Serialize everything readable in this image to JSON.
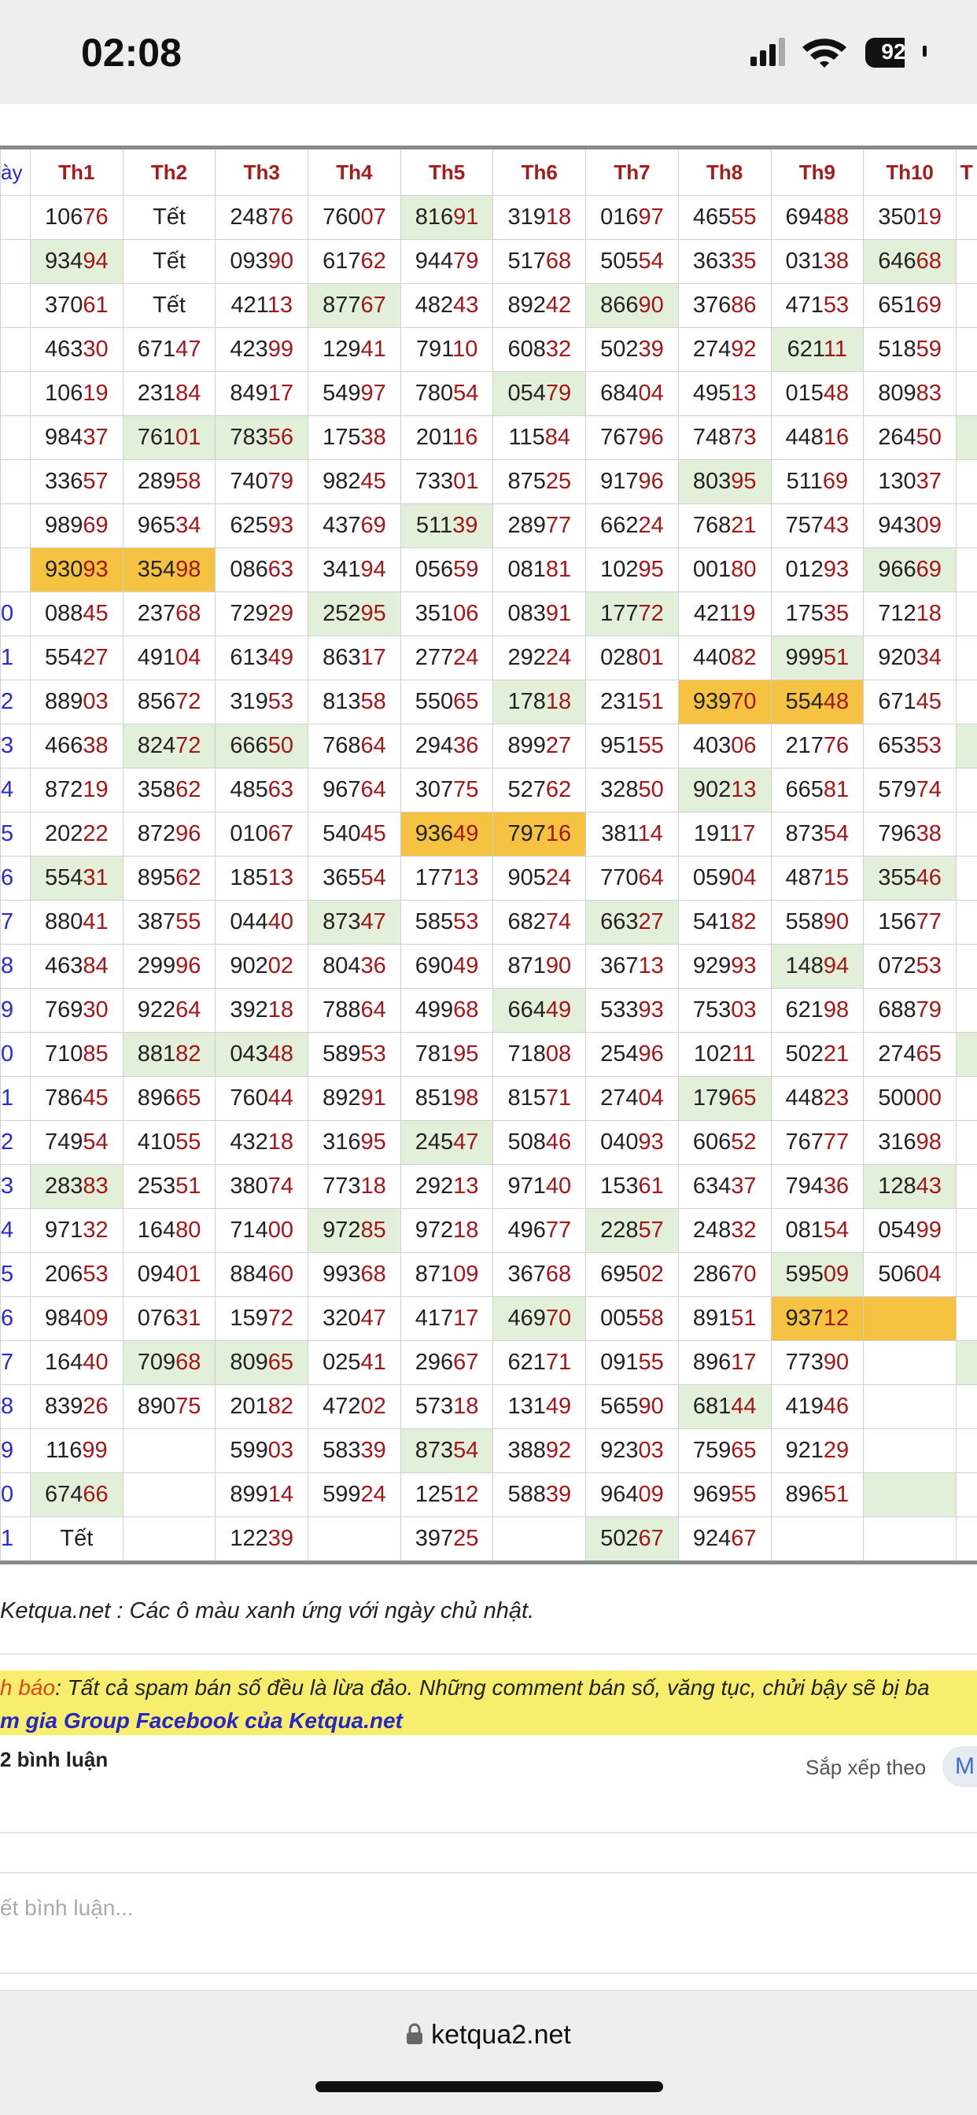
{
  "status_bar": {
    "time": "02:08",
    "battery": "92"
  },
  "table": {
    "header": [
      "ày",
      "Th1",
      "Th2",
      "Th3",
      "Th4",
      "Th5",
      "Th6",
      "Th7",
      "Th8",
      "Th9",
      "Th10",
      "T"
    ],
    "shade_colors": {
      "g": "#e3f0d9",
      "o": "#f5c242"
    },
    "rows": [
      {
        "label": null,
        "cells": [
          "10676",
          "Tết",
          "24876",
          "76007",
          "81691",
          "31918",
          "01697",
          "46555",
          "69488",
          "35019",
          null
        ],
        "shade": [
          null,
          null,
          null,
          null,
          "g",
          null,
          null,
          null,
          null,
          null,
          null
        ]
      },
      {
        "label": null,
        "cells": [
          "93494",
          "Tết",
          "09390",
          "61762",
          "94479",
          "51768",
          "50554",
          "36335",
          "03138",
          "64668",
          null
        ],
        "shade": [
          "g",
          null,
          null,
          null,
          null,
          null,
          null,
          null,
          null,
          "g",
          null
        ]
      },
      {
        "label": null,
        "cells": [
          "37061",
          "Tết",
          "42113",
          "87767",
          "48243",
          "89242",
          "86690",
          "37686",
          "47153",
          "65169",
          null
        ],
        "shade": [
          null,
          null,
          null,
          "g",
          null,
          null,
          "g",
          null,
          null,
          null,
          null
        ]
      },
      {
        "label": null,
        "cells": [
          "46330",
          "67147",
          "42399",
          "12941",
          "79110",
          "60832",
          "50239",
          "27492",
          "62111",
          "51859",
          null
        ],
        "shade": [
          null,
          null,
          null,
          null,
          null,
          null,
          null,
          null,
          "g",
          null,
          null
        ]
      },
      {
        "label": null,
        "cells": [
          "10619",
          "23184",
          "84917",
          "54997",
          "78054",
          "05479",
          "68404",
          "49513",
          "01548",
          "80983",
          null
        ],
        "shade": [
          null,
          null,
          null,
          null,
          null,
          "g",
          null,
          null,
          null,
          null,
          null
        ]
      },
      {
        "label": null,
        "cells": [
          "98437",
          "76101",
          "78356",
          "17538",
          "20116",
          "11584",
          "76796",
          "74873",
          "44816",
          "26450",
          null
        ],
        "shade": [
          null,
          "g",
          "g",
          null,
          null,
          null,
          null,
          null,
          null,
          null,
          "g"
        ]
      },
      {
        "label": null,
        "cells": [
          "33657",
          "28958",
          "74079",
          "98245",
          "73301",
          "87525",
          "91796",
          "80395",
          "51169",
          "13037",
          null
        ],
        "shade": [
          null,
          null,
          null,
          null,
          null,
          null,
          null,
          "g",
          null,
          null,
          null
        ]
      },
      {
        "label": null,
        "cells": [
          "98969",
          "96534",
          "62593",
          "43769",
          "51139",
          "28977",
          "66224",
          "76821",
          "75743",
          "94309",
          null
        ],
        "shade": [
          null,
          null,
          null,
          null,
          "g",
          null,
          null,
          null,
          null,
          null,
          null
        ]
      },
      {
        "label": null,
        "cells": [
          "93093",
          "35498",
          "08663",
          "34194",
          "05659",
          "08181",
          "10295",
          "00180",
          "01293",
          "96669",
          null
        ],
        "shade": [
          "o",
          "o",
          null,
          null,
          null,
          null,
          null,
          null,
          null,
          "g",
          null
        ]
      },
      {
        "label": "0",
        "cells": [
          "08845",
          "23768",
          "72929",
          "25295",
          "35106",
          "08391",
          "17772",
          "42119",
          "17535",
          "71218",
          null
        ],
        "shade": [
          null,
          null,
          null,
          "g",
          null,
          null,
          "g",
          null,
          null,
          null,
          null
        ]
      },
      {
        "label": "1",
        "cells": [
          "55427",
          "49104",
          "61349",
          "86317",
          "27724",
          "29224",
          "02801",
          "44082",
          "99951",
          "92034",
          null
        ],
        "shade": [
          null,
          null,
          null,
          null,
          null,
          null,
          null,
          null,
          "g",
          null,
          null
        ]
      },
      {
        "label": "2",
        "cells": [
          "88903",
          "85672",
          "31953",
          "81358",
          "55065",
          "17818",
          "23151",
          "93970",
          "55448",
          "67145",
          null
        ],
        "shade": [
          null,
          null,
          null,
          null,
          null,
          "g",
          null,
          "o",
          "o",
          null,
          null
        ]
      },
      {
        "label": "3",
        "cells": [
          "46638",
          "82472",
          "66650",
          "76864",
          "29436",
          "89927",
          "95155",
          "40306",
          "21776",
          "65353",
          null
        ],
        "shade": [
          null,
          "g",
          "g",
          null,
          null,
          null,
          null,
          null,
          null,
          null,
          "g"
        ]
      },
      {
        "label": "4",
        "cells": [
          "87219",
          "35862",
          "48563",
          "96764",
          "30775",
          "52762",
          "32850",
          "90213",
          "66581",
          "57974",
          null
        ],
        "shade": [
          null,
          null,
          null,
          null,
          null,
          null,
          null,
          "g",
          null,
          null,
          null
        ]
      },
      {
        "label": "5",
        "cells": [
          "20222",
          "87296",
          "01067",
          "54045",
          "93649",
          "79716",
          "38114",
          "19117",
          "87354",
          "79638",
          null
        ],
        "shade": [
          null,
          null,
          null,
          null,
          "o",
          "o",
          null,
          null,
          null,
          null,
          null
        ]
      },
      {
        "label": "6",
        "cells": [
          "55431",
          "89562",
          "18513",
          "36554",
          "17713",
          "90524",
          "77064",
          "05904",
          "48715",
          "35546",
          null
        ],
        "shade": [
          "g",
          null,
          null,
          null,
          null,
          null,
          null,
          null,
          null,
          "g",
          null
        ]
      },
      {
        "label": "7",
        "cells": [
          "88041",
          "38755",
          "04440",
          "87347",
          "58553",
          "68274",
          "66327",
          "54182",
          "55890",
          "15677",
          null
        ],
        "shade": [
          null,
          null,
          null,
          "g",
          null,
          null,
          "g",
          null,
          null,
          null,
          null
        ]
      },
      {
        "label": "8",
        "cells": [
          "46384",
          "29996",
          "90202",
          "80436",
          "69049",
          "87190",
          "36713",
          "92993",
          "14894",
          "07253",
          null
        ],
        "shade": [
          null,
          null,
          null,
          null,
          null,
          null,
          null,
          null,
          "g",
          null,
          null
        ]
      },
      {
        "label": "9",
        "cells": [
          "76930",
          "92264",
          "39218",
          "78864",
          "49968",
          "66449",
          "53393",
          "75303",
          "62198",
          "68879",
          null
        ],
        "shade": [
          null,
          null,
          null,
          null,
          null,
          "g",
          null,
          null,
          null,
          null,
          null
        ]
      },
      {
        "label": "0",
        "cells": [
          "71085",
          "88182",
          "04348",
          "58953",
          "78195",
          "71808",
          "25496",
          "10211",
          "50221",
          "27465",
          null
        ],
        "shade": [
          null,
          "g",
          "g",
          null,
          null,
          null,
          null,
          null,
          null,
          null,
          "g"
        ]
      },
      {
        "label": "1",
        "cells": [
          "78645",
          "89665",
          "76044",
          "89291",
          "85198",
          "81571",
          "27404",
          "17965",
          "44823",
          "50000",
          null
        ],
        "shade": [
          null,
          null,
          null,
          null,
          null,
          null,
          null,
          "g",
          null,
          null,
          null
        ]
      },
      {
        "label": "2",
        "cells": [
          "74954",
          "41055",
          "43218",
          "31695",
          "24547",
          "50846",
          "04093",
          "60652",
          "76777",
          "31698",
          null
        ],
        "shade": [
          null,
          null,
          null,
          null,
          "g",
          null,
          null,
          null,
          null,
          null,
          null
        ]
      },
      {
        "label": "3",
        "cells": [
          "28383",
          "25351",
          "38074",
          "77318",
          "29213",
          "97140",
          "15361",
          "63437",
          "79436",
          "12843",
          null
        ],
        "shade": [
          "g",
          null,
          null,
          null,
          null,
          null,
          null,
          null,
          null,
          "g",
          null
        ]
      },
      {
        "label": "4",
        "cells": [
          "97132",
          "16480",
          "71400",
          "97285",
          "97218",
          "49677",
          "22857",
          "24832",
          "08154",
          "05499",
          null
        ],
        "shade": [
          null,
          null,
          null,
          "g",
          null,
          null,
          "g",
          null,
          null,
          null,
          null
        ]
      },
      {
        "label": "5",
        "cells": [
          "20653",
          "09401",
          "88460",
          "99368",
          "87109",
          "36768",
          "69502",
          "28670",
          "59509",
          "50604",
          null
        ],
        "shade": [
          null,
          null,
          null,
          null,
          null,
          null,
          null,
          null,
          "g",
          null,
          null
        ]
      },
      {
        "label": "6",
        "cells": [
          "98409",
          "07631",
          "15972",
          "32047",
          "41717",
          "46970",
          "00558",
          "89151",
          "93712",
          null,
          null
        ],
        "shade": [
          null,
          null,
          null,
          null,
          null,
          "g",
          null,
          null,
          "o",
          "o",
          null
        ]
      },
      {
        "label": "7",
        "cells": [
          "16440",
          "70968",
          "80965",
          "02541",
          "29667",
          "62171",
          "09155",
          "89617",
          "77390",
          null,
          null
        ],
        "shade": [
          null,
          "g",
          "g",
          null,
          null,
          null,
          null,
          null,
          null,
          null,
          "g"
        ]
      },
      {
        "label": "8",
        "cells": [
          "83926",
          "89075",
          "20182",
          "47202",
          "57318",
          "13149",
          "56590",
          "68144",
          "41946",
          null,
          null
        ],
        "shade": [
          null,
          null,
          null,
          null,
          null,
          null,
          null,
          "g",
          null,
          null,
          null
        ]
      },
      {
        "label": "9",
        "cells": [
          "11699",
          null,
          "59903",
          "58339",
          "87354",
          "38892",
          "92303",
          "75965",
          "92129",
          null,
          null
        ],
        "shade": [
          null,
          null,
          null,
          null,
          "g",
          null,
          null,
          null,
          null,
          null,
          null
        ]
      },
      {
        "label": "0",
        "cells": [
          "67466",
          null,
          "89914",
          "59924",
          "12512",
          "58839",
          "96409",
          "96955",
          "89651",
          null,
          null
        ],
        "shade": [
          "g",
          null,
          null,
          null,
          null,
          null,
          null,
          null,
          null,
          "g",
          null
        ]
      },
      {
        "label": "1",
        "cells": [
          "Tết",
          null,
          "12239",
          null,
          "39725",
          null,
          "50267",
          "92467",
          null,
          null,
          null
        ],
        "shade": [
          null,
          null,
          null,
          null,
          null,
          null,
          "g",
          null,
          null,
          null,
          null
        ]
      }
    ]
  },
  "note": "Ketqua.net : Các ô màu xanh ứng với ngày chủ nhật.",
  "notice": {
    "label": "h báo",
    "text": ": Tất cả spam bán số đều là lừa đảo. Những comment bán số, văng tục, chửi bậy sẽ bị ba",
    "link": "m gia Group Facebook của Ketqua.net"
  },
  "comments": {
    "count": "2 bình luận",
    "sort_label": "Sắp xếp theo",
    "sort_value": "M",
    "placeholder": "ết bình luận..."
  },
  "browser": {
    "url": "ketqua2.net"
  }
}
